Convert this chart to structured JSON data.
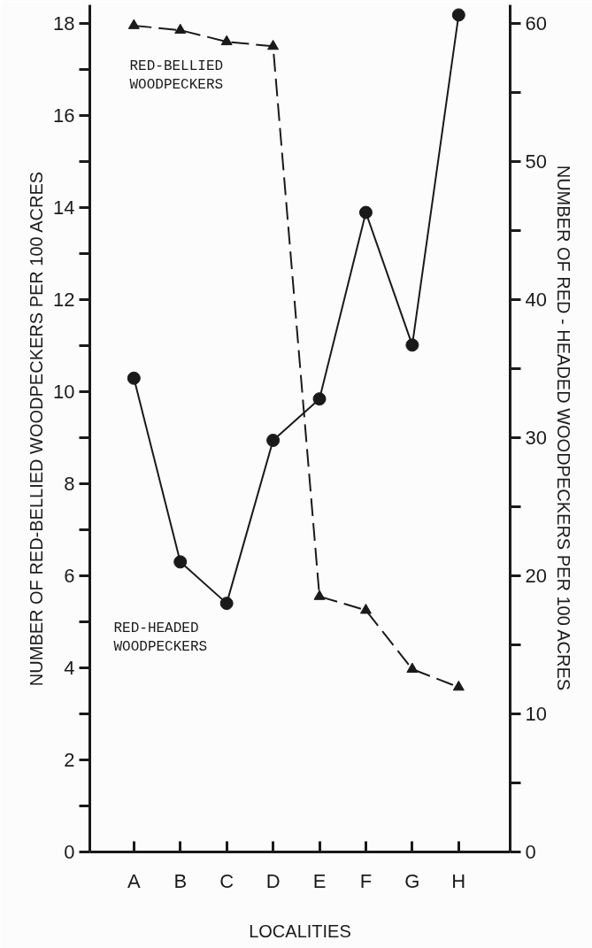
{
  "chart_data": {
    "type": "line",
    "xlabel": "LOCALITIES",
    "ylabel": "NUMBER OF RED-BELLIED WOODPECKERS PER 100 ACRES",
    "y2label": "NUMBER OF RED - HEADED WOODPECKERS PER 100 ACRES",
    "categories": [
      "A",
      "B",
      "C",
      "D",
      "E",
      "F",
      "G",
      "H"
    ],
    "ylim": [
      0,
      18.4
    ],
    "yticks": [
      0,
      {
        "value": 1,
        "label": null
      },
      2,
      {
        "value": 3,
        "label": null
      },
      4,
      {
        "value": 5,
        "label": null
      },
      6,
      {
        "value": 7,
        "label": null
      },
      8,
      {
        "value": 9,
        "label": null
      },
      10,
      {
        "value": 11,
        "label": null
      },
      12,
      {
        "value": 13,
        "label": null
      },
      14,
      {
        "value": 15,
        "label": null
      },
      16,
      {
        "value": 17,
        "label": null
      },
      18
    ],
    "y2lim": [
      0,
      61.33
    ],
    "y2ticks": [
      0,
      {
        "value": 5,
        "label": null
      },
      10,
      {
        "value": 15,
        "label": null
      },
      20,
      {
        "value": 25,
        "label": null
      },
      30,
      {
        "value": 35,
        "label": null
      },
      40,
      {
        "value": 45,
        "label": null
      },
      50,
      {
        "value": 55,
        "label": null
      },
      60
    ],
    "grid": false,
    "series": [
      {
        "name": "RED-BELLIED\nWOODPECKERS",
        "color": "#1a1a1a",
        "marker": "triangle",
        "line_style": "dashed",
        "values": [
          17.95,
          17.85,
          17.6,
          17.5,
          5.55,
          5.25,
          3.97,
          3.58
        ]
      },
      {
        "name": "RED-HEADED\nWOODPECKERS",
        "color": "#1a1a1a",
        "marker": "circle",
        "line_style": "solid",
        "axis": "y2",
        "values": [
          34.3,
          21.0,
          18.0,
          29.8,
          32.8,
          46.3,
          36.7,
          60.6
        ]
      }
    ]
  }
}
